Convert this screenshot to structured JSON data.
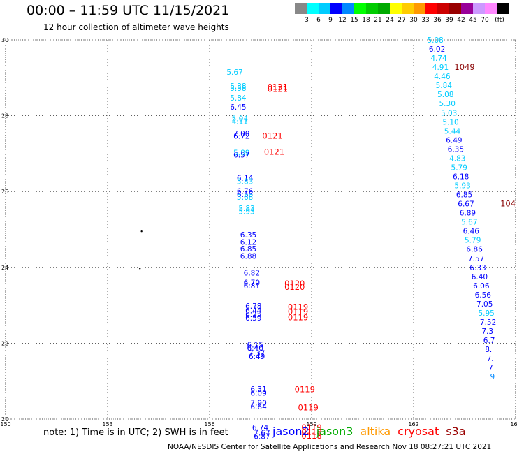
{
  "title": "00:00 – 11:59 UTC 11/15/2021",
  "subtitle": "12 hour collection of altimeter wave heights",
  "note": "note:  1) Time is in UTC; 2) SWH is in feet",
  "credit": "NOAA/NESDIS Center for Satellite Applications and Research    Nov 18 08:27:21 UTC 2021",
  "satellites": [
    {
      "name": "jason2",
      "color": "#0000ff"
    },
    {
      "name": "jason3",
      "color": "#00aa00"
    },
    {
      "name": "altika",
      "color": "#ff9900"
    },
    {
      "name": "cryosat",
      "color": "#ff0000"
    },
    {
      "name": "s3a",
      "color": "#990000"
    }
  ],
  "colorbar": {
    "unit": "(ft)",
    "colors": [
      "#888888",
      "#00ffff",
      "#00ccff",
      "#0000ff",
      "#0088ff",
      "#00ff00",
      "#00cc00",
      "#00aa00",
      "#ffff00",
      "#ffcc00",
      "#ff9900",
      "#ff0000",
      "#cc0000",
      "#990000",
      "#990099",
      "#cc99ff",
      "#ff88ff",
      "#000000"
    ],
    "labels": [
      "3",
      "6",
      "9",
      "12",
      "15",
      "18",
      "21",
      "24",
      "27",
      "30",
      "33",
      "36",
      "39",
      "42",
      "45",
      "70"
    ]
  },
  "chart_data": {
    "type": "scatter",
    "xlim": [
      150,
      165
    ],
    "ylim": [
      20,
      30
    ],
    "xticks": [
      "150",
      "153",
      "156",
      "159",
      "162",
      "165"
    ],
    "yticks": [
      "20",
      "22",
      "24",
      "26",
      "28",
      "30"
    ],
    "grid": true,
    "swh_points": [
      {
        "x": 156.5,
        "y": 29.15,
        "v": "5.67"
      },
      {
        "x": 156.6,
        "y": 28.78,
        "v": "5.38"
      },
      {
        "x": 156.6,
        "y": 28.73,
        "v": "5.58"
      },
      {
        "x": 156.6,
        "y": 28.47,
        "v": "5.84"
      },
      {
        "x": 156.6,
        "y": 28.23,
        "v": "6.45"
      },
      {
        "x": 156.65,
        "y": 27.93,
        "v": "5.04"
      },
      {
        "x": 156.65,
        "y": 27.85,
        "v": "4.11"
      },
      {
        "x": 156.7,
        "y": 27.53,
        "v": "7.00"
      },
      {
        "x": 156.7,
        "y": 27.47,
        "v": "6.72"
      },
      {
        "x": 156.7,
        "y": 27.03,
        "v": "5.89"
      },
      {
        "x": 156.7,
        "y": 26.97,
        "v": "6.57"
      },
      {
        "x": 156.8,
        "y": 26.36,
        "v": "6.14"
      },
      {
        "x": 156.8,
        "y": 26.27,
        "v": "5.83"
      },
      {
        "x": 156.8,
        "y": 26.01,
        "v": "6.76"
      },
      {
        "x": 156.8,
        "y": 25.93,
        "v": "6.55"
      },
      {
        "x": 156.8,
        "y": 25.86,
        "v": "5.68"
      },
      {
        "x": 156.85,
        "y": 25.56,
        "v": "5.83"
      },
      {
        "x": 156.85,
        "y": 25.48,
        "v": "5.93"
      },
      {
        "x": 156.9,
        "y": 24.86,
        "v": "6.35"
      },
      {
        "x": 156.9,
        "y": 24.67,
        "v": "6.12"
      },
      {
        "x": 156.9,
        "y": 24.49,
        "v": "6.85"
      },
      {
        "x": 156.9,
        "y": 24.3,
        "v": "6.88"
      },
      {
        "x": 157.0,
        "y": 23.86,
        "v": "6.82"
      },
      {
        "x": 157.0,
        "y": 23.6,
        "v": "6.70"
      },
      {
        "x": 157.0,
        "y": 23.52,
        "v": "6.81"
      },
      {
        "x": 157.05,
        "y": 22.98,
        "v": "6.78"
      },
      {
        "x": 157.05,
        "y": 22.86,
        "v": "6.44"
      },
      {
        "x": 157.05,
        "y": 22.76,
        "v": "6.25"
      },
      {
        "x": 157.05,
        "y": 22.67,
        "v": "6.59"
      },
      {
        "x": 157.1,
        "y": 21.96,
        "v": "6.15"
      },
      {
        "x": 157.1,
        "y": 21.88,
        "v": "6.40"
      },
      {
        "x": 157.15,
        "y": 21.74,
        "v": "7.37"
      },
      {
        "x": 157.15,
        "y": 21.66,
        "v": "6.49"
      },
      {
        "x": 157.2,
        "y": 20.79,
        "v": "6.31"
      },
      {
        "x": 157.2,
        "y": 20.69,
        "v": "6.09"
      },
      {
        "x": 157.2,
        "y": 20.43,
        "v": "7.90"
      },
      {
        "x": 157.2,
        "y": 20.33,
        "v": "6.64"
      },
      {
        "x": 157.25,
        "y": 19.78,
        "v": "6.74"
      },
      {
        "x": 157.3,
        "y": 19.64,
        "v": "7.67"
      },
      {
        "x": 157.3,
        "y": 19.55,
        "v": "6.87"
      },
      {
        "x": 162.4,
        "y": 30.0,
        "v": "5.08"
      },
      {
        "x": 162.45,
        "y": 29.76,
        "v": "6.02"
      },
      {
        "x": 162.5,
        "y": 29.52,
        "v": "4.74"
      },
      {
        "x": 162.55,
        "y": 29.28,
        "v": "4.91"
      },
      {
        "x": 162.6,
        "y": 29.04,
        "v": "4.46"
      },
      {
        "x": 162.65,
        "y": 28.8,
        "v": "5.84"
      },
      {
        "x": 162.7,
        "y": 28.56,
        "v": "5.08"
      },
      {
        "x": 162.75,
        "y": 28.32,
        "v": "5.30"
      },
      {
        "x": 162.8,
        "y": 28.08,
        "v": "5.03"
      },
      {
        "x": 162.85,
        "y": 27.84,
        "v": "5.10"
      },
      {
        "x": 162.9,
        "y": 27.6,
        "v": "5.44"
      },
      {
        "x": 162.95,
        "y": 27.36,
        "v": "6.49"
      },
      {
        "x": 163.0,
        "y": 27.12,
        "v": "6.35"
      },
      {
        "x": 163.05,
        "y": 26.88,
        "v": "4.83"
      },
      {
        "x": 163.1,
        "y": 26.64,
        "v": "5.79"
      },
      {
        "x": 163.15,
        "y": 26.4,
        "v": "6.18"
      },
      {
        "x": 163.2,
        "y": 26.16,
        "v": "5.93"
      },
      {
        "x": 163.25,
        "y": 25.92,
        "v": "6.85"
      },
      {
        "x": 163.3,
        "y": 25.68,
        "v": "6.67"
      },
      {
        "x": 163.35,
        "y": 25.44,
        "v": "6.89"
      },
      {
        "x": 163.4,
        "y": 25.2,
        "v": "5.67"
      },
      {
        "x": 163.45,
        "y": 24.96,
        "v": "6.46"
      },
      {
        "x": 163.5,
        "y": 24.72,
        "v": "5.79"
      },
      {
        "x": 163.55,
        "y": 24.48,
        "v": "6.86"
      },
      {
        "x": 163.6,
        "y": 24.24,
        "v": "7.57"
      },
      {
        "x": 163.65,
        "y": 24.0,
        "v": "6.33"
      },
      {
        "x": 163.7,
        "y": 23.76,
        "v": "6.40"
      },
      {
        "x": 163.75,
        "y": 23.52,
        "v": "6.06"
      },
      {
        "x": 163.8,
        "y": 23.28,
        "v": "6.56"
      },
      {
        "x": 163.85,
        "y": 23.04,
        "v": "7.05"
      },
      {
        "x": 163.9,
        "y": 22.8,
        "v": "5.95"
      },
      {
        "x": 163.95,
        "y": 22.56,
        "v": "7.52"
      },
      {
        "x": 164.0,
        "y": 22.32,
        "v": "7.3"
      },
      {
        "x": 164.05,
        "y": 22.08,
        "v": "6.7"
      },
      {
        "x": 164.1,
        "y": 21.84,
        "v": "8."
      },
      {
        "x": 164.15,
        "y": 21.6,
        "v": "7."
      },
      {
        "x": 164.2,
        "y": 21.36,
        "v": "7"
      },
      {
        "x": 164.25,
        "y": 21.12,
        "v": "9"
      }
    ],
    "pass_times": [
      {
        "x": 157.7,
        "y": 28.76,
        "v": "0121",
        "color": "#ff0000"
      },
      {
        "x": 157.7,
        "y": 28.7,
        "v": "0121",
        "color": "#ff0000"
      },
      {
        "x": 157.55,
        "y": 27.47,
        "v": "0121",
        "color": "#ff0000"
      },
      {
        "x": 157.6,
        "y": 27.04,
        "v": "0121",
        "color": "#ff0000"
      },
      {
        "x": 158.2,
        "y": 23.57,
        "v": "0120",
        "color": "#ff0000"
      },
      {
        "x": 158.2,
        "y": 23.48,
        "v": "0120",
        "color": "#ff0000"
      },
      {
        "x": 158.3,
        "y": 22.96,
        "v": "0119",
        "color": "#ff0000"
      },
      {
        "x": 158.3,
        "y": 22.84,
        "v": "0119",
        "color": "#ff0000"
      },
      {
        "x": 158.3,
        "y": 22.68,
        "v": "0119",
        "color": "#ff0000"
      },
      {
        "x": 158.5,
        "y": 20.78,
        "v": "0119",
        "color": "#ff0000"
      },
      {
        "x": 158.6,
        "y": 20.3,
        "v": "0119",
        "color": "#ff0000"
      },
      {
        "x": 158.7,
        "y": 19.78,
        "v": "0119",
        "color": "#ff0000"
      },
      {
        "x": 158.7,
        "y": 19.66,
        "v": "0118",
        "color": "#ff0000"
      },
      {
        "x": 158.7,
        "y": 19.56,
        "v": "0118",
        "color": "#ff0000"
      },
      {
        "x": 163.2,
        "y": 29.28,
        "v": "1049",
        "color": "#880000"
      },
      {
        "x": 164.55,
        "y": 25.68,
        "v": "104",
        "color": "#880000"
      }
    ],
    "dots": [
      {
        "x": 154.0,
        "y": 24.95
      },
      {
        "x": 153.95,
        "y": 23.97
      }
    ]
  }
}
